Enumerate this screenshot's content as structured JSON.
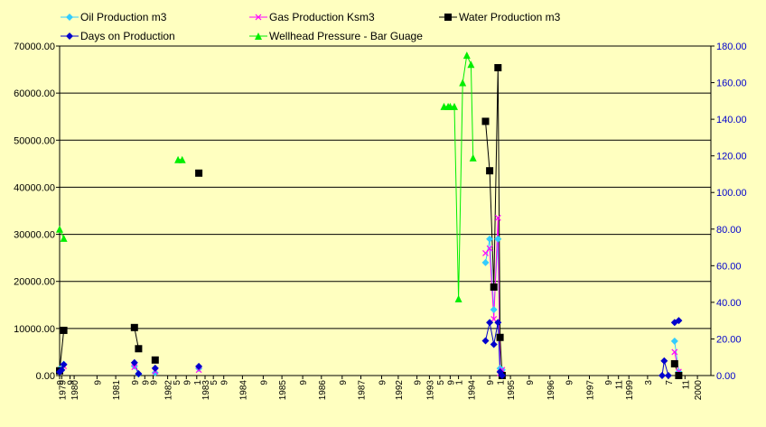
{
  "chart_data": {
    "type": "line",
    "title": "",
    "colors": {
      "background": "#ffffc0",
      "grid": "#000000",
      "oil": "#33ccff",
      "gas": "#ff00ff",
      "water": "#000000",
      "days": "#0000cc",
      "pressure": "#00ee00"
    },
    "left_axis": {
      "min": 0,
      "max": 70000,
      "ticks": [
        "0.00",
        "10000.00",
        "20000.00",
        "30000.00",
        "40000.00",
        "50000.00",
        "60000.00",
        "70000.00"
      ]
    },
    "right_axis": {
      "min": 0,
      "max": 180,
      "ticks": [
        "0.00",
        "20.00",
        "40.00",
        "60.00",
        "80.00",
        "100.00",
        "120.00",
        "140.00",
        "160.00",
        "180.00"
      ]
    },
    "x_labels": [
      {
        "t": 0,
        "label": "9"
      },
      {
        "t": 1,
        "label": "1979"
      },
      {
        "t": 5,
        "label": "9"
      },
      {
        "t": 7,
        "label": "1980"
      },
      {
        "t": 18,
        "label": "9"
      },
      {
        "t": 27,
        "label": "1981"
      },
      {
        "t": 36,
        "label": "9"
      },
      {
        "t": 41,
        "label": "9"
      },
      {
        "t": 45,
        "label": "9"
      },
      {
        "t": 52,
        "label": "1982"
      },
      {
        "t": 56,
        "label": "5"
      },
      {
        "t": 61,
        "label": "9"
      },
      {
        "t": 66,
        "label": "1"
      },
      {
        "t": 70,
        "label": "1983"
      },
      {
        "t": 74,
        "label": "5"
      },
      {
        "t": 79,
        "label": "9"
      },
      {
        "t": 88,
        "label": "1984"
      },
      {
        "t": 98,
        "label": "9"
      },
      {
        "t": 107,
        "label": "1985"
      },
      {
        "t": 117,
        "label": "9"
      },
      {
        "t": 126,
        "label": "1986"
      },
      {
        "t": 136,
        "label": "9"
      },
      {
        "t": 145,
        "label": "1987"
      },
      {
        "t": 155,
        "label": "9"
      },
      {
        "t": 163,
        "label": "1992"
      },
      {
        "t": 172,
        "label": "9"
      },
      {
        "t": 178,
        "label": "1993"
      },
      {
        "t": 183,
        "label": "5"
      },
      {
        "t": 188,
        "label": "9"
      },
      {
        "t": 192,
        "label": "1"
      },
      {
        "t": 198,
        "label": "1994"
      },
      {
        "t": 207,
        "label": "9"
      },
      {
        "t": 212,
        "label": "1"
      },
      {
        "t": 217,
        "label": "1995"
      },
      {
        "t": 226,
        "label": "9"
      },
      {
        "t": 236,
        "label": "1996"
      },
      {
        "t": 245,
        "label": "9"
      },
      {
        "t": 255,
        "label": "1997"
      },
      {
        "t": 264,
        "label": "9"
      },
      {
        "t": 269,
        "label": "11"
      },
      {
        "t": 274,
        "label": "1999"
      },
      {
        "t": 283,
        "label": "3"
      },
      {
        "t": 293,
        "label": "7"
      },
      {
        "t": 301,
        "label": "11"
      },
      {
        "t": 307,
        "label": "2000"
      }
    ],
    "series": [
      {
        "name": "Oil Production m3",
        "key": "oil",
        "axis": "left",
        "marker": "diamond",
        "points": [
          [
            0,
            1400
          ],
          [
            2,
            2400
          ],
          [
            36,
            2000
          ],
          [
            38,
            300
          ],
          [
            46,
            600
          ],
          [
            67,
            1500
          ],
          [
            205,
            24000
          ],
          [
            207,
            29000
          ],
          [
            209,
            14000
          ],
          [
            211,
            29000
          ],
          [
            212,
            1500
          ],
          [
            213,
            1200
          ],
          [
            296,
            7300
          ],
          [
            298,
            800
          ]
        ]
      },
      {
        "name": "Gas Production Ksm3",
        "key": "gas",
        "axis": "left",
        "marker": "x",
        "points": [
          [
            0,
            1200
          ],
          [
            2,
            2000
          ],
          [
            36,
            1800
          ],
          [
            46,
            900
          ],
          [
            67,
            1200
          ],
          [
            205,
            26000
          ],
          [
            207,
            27000
          ],
          [
            209,
            12000
          ],
          [
            211,
            33500
          ],
          [
            212,
            500
          ],
          [
            213,
            1200
          ],
          [
            296,
            5000
          ],
          [
            298,
            800
          ]
        ]
      },
      {
        "name": "Water Production m3",
        "key": "water",
        "axis": "left",
        "marker": "square",
        "points": [
          [
            0,
            1000
          ],
          [
            2,
            9600
          ],
          [
            36,
            10200
          ],
          [
            38,
            5700
          ],
          [
            46,
            3300
          ],
          [
            67,
            43000
          ],
          [
            205,
            54000
          ],
          [
            207,
            43500
          ],
          [
            209,
            18800
          ],
          [
            211,
            65400
          ],
          [
            212,
            8100
          ],
          [
            213,
            0
          ],
          [
            296,
            2500
          ],
          [
            298,
            0
          ]
        ]
      },
      {
        "name": "Days on Production",
        "key": "days",
        "axis": "right",
        "marker": "diamond",
        "points": [
          [
            0,
            2
          ],
          [
            1,
            3
          ],
          [
            2,
            6
          ],
          [
            36,
            7
          ],
          [
            38,
            1
          ],
          [
            46,
            4
          ],
          [
            67,
            5
          ],
          [
            205,
            19
          ],
          [
            207,
            29
          ],
          [
            209,
            17
          ],
          [
            211,
            29
          ],
          [
            212,
            2
          ],
          [
            213,
            0
          ],
          [
            290,
            0
          ],
          [
            291,
            8
          ],
          [
            293,
            0
          ],
          [
            296,
            29
          ],
          [
            298,
            30
          ]
        ]
      },
      {
        "name": "Wellhead Pressure - Bar Guage",
        "key": "pressure",
        "axis": "right",
        "marker": "triangle",
        "points": [
          [
            0,
            80
          ],
          [
            2,
            75
          ],
          [
            57,
            118
          ],
          [
            59,
            118
          ],
          [
            185,
            147
          ],
          [
            187,
            147
          ],
          [
            188,
            147
          ],
          [
            190,
            147
          ],
          [
            192,
            42
          ],
          [
            194,
            160
          ],
          [
            196,
            175
          ],
          [
            198,
            170
          ],
          [
            199,
            119
          ]
        ]
      }
    ],
    "segments": [
      {
        "key": "oil",
        "ranges": [
          [
            0,
            1
          ],
          [
            2,
            3
          ],
          [
            4,
            4
          ],
          [
            5,
            5
          ],
          [
            6,
            11
          ],
          [
            12,
            13
          ]
        ]
      },
      {
        "key": "gas",
        "ranges": [
          [
            0,
            1
          ],
          [
            2,
            2
          ],
          [
            3,
            3
          ],
          [
            4,
            4
          ],
          [
            5,
            10
          ],
          [
            11,
            12
          ]
        ]
      },
      {
        "key": "water",
        "ranges": [
          [
            0,
            1
          ],
          [
            2,
            3
          ],
          [
            4,
            4
          ],
          [
            5,
            5
          ],
          [
            6,
            11
          ],
          [
            12,
            13
          ]
        ]
      },
      {
        "key": "days",
        "ranges": [
          [
            0,
            2
          ],
          [
            3,
            4
          ],
          [
            5,
            5
          ],
          [
            6,
            6
          ],
          [
            7,
            12
          ],
          [
            13,
            15
          ],
          [
            16,
            17
          ]
        ]
      },
      {
        "key": "pressure",
        "ranges": [
          [
            0,
            1
          ],
          [
            2,
            3
          ],
          [
            4,
            12
          ]
        ]
      }
    ]
  }
}
